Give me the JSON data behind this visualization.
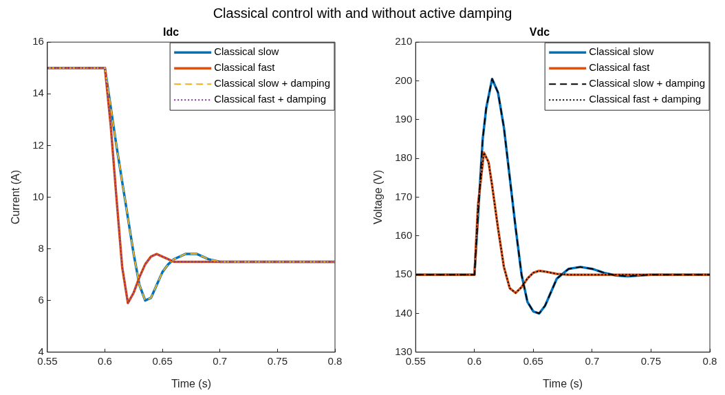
{
  "chart_data": [
    {
      "type": "line",
      "title": "Idc",
      "xlabel": "Time (s)",
      "ylabel": "Current (A)",
      "annotations": [
        "Classical control with and without active damping"
      ],
      "xlim": [
        0.55,
        0.8
      ],
      "xticks": [
        0.55,
        0.6,
        0.65,
        0.7,
        0.75,
        0.8
      ],
      "ylim": [
        4,
        16
      ],
      "yticks": [
        4,
        6,
        8,
        10,
        12,
        14,
        16
      ],
      "grid": false,
      "legend": "top right",
      "marker": "none",
      "series": [
        {
          "name": "Classical slow",
          "color": "#0072bd",
          "line_style": "solid",
          "x": [
            0.55,
            0.6,
            0.605,
            0.61,
            0.615,
            0.62,
            0.625,
            0.63,
            0.635,
            0.64,
            0.645,
            0.65,
            0.655,
            0.66,
            0.67,
            0.68,
            0.69,
            0.7,
            0.8
          ],
          "values": [
            15,
            15,
            13.5,
            12,
            10.6,
            9.2,
            7.8,
            6.6,
            6,
            6.1,
            6.6,
            7.1,
            7.4,
            7.6,
            7.8,
            7.8,
            7.6,
            7.5,
            7.5
          ]
        },
        {
          "name": "Classical fast",
          "color": "#d95319",
          "line_style": "solid",
          "x": [
            0.55,
            0.6,
            0.605,
            0.61,
            0.615,
            0.62,
            0.625,
            0.63,
            0.635,
            0.64,
            0.645,
            0.65,
            0.66,
            0.8
          ],
          "values": [
            15,
            15,
            12.8,
            10,
            7.3,
            5.9,
            6.3,
            6.9,
            7.4,
            7.7,
            7.8,
            7.7,
            7.5,
            7.5
          ]
        },
        {
          "name": "Classical slow + damping",
          "color": "#edb120",
          "line_style": "dashed",
          "x": [
            0.55,
            0.6,
            0.605,
            0.61,
            0.615,
            0.62,
            0.625,
            0.63,
            0.635,
            0.64,
            0.645,
            0.65,
            0.655,
            0.66,
            0.67,
            0.68,
            0.69,
            0.7,
            0.8
          ],
          "values": [
            15,
            15,
            13.5,
            12,
            10.6,
            9.2,
            7.8,
            6.6,
            6,
            6.1,
            6.6,
            7.1,
            7.4,
            7.6,
            7.8,
            7.8,
            7.6,
            7.5,
            7.5
          ]
        },
        {
          "name": "Classical fast + damping",
          "color": "#7e2f8e",
          "line_style": "dotted",
          "x": [
            0.55,
            0.6,
            0.605,
            0.61,
            0.615,
            0.62,
            0.625,
            0.63,
            0.635,
            0.64,
            0.645,
            0.65,
            0.66,
            0.8
          ],
          "values": [
            15,
            15,
            12.8,
            10,
            7.3,
            5.9,
            6.3,
            6.9,
            7.4,
            7.7,
            7.8,
            7.7,
            7.5,
            7.5
          ]
        }
      ]
    },
    {
      "type": "line",
      "title": "Vdc",
      "xlabel": "Time (s)",
      "ylabel": "Voltage (V)",
      "xlim": [
        0.55,
        0.8
      ],
      "xticks": [
        0.55,
        0.6,
        0.65,
        0.7,
        0.75,
        0.8
      ],
      "ylim": [
        130,
        210
      ],
      "yticks": [
        130,
        140,
        150,
        160,
        170,
        180,
        190,
        200,
        210
      ],
      "grid": false,
      "legend": "top right",
      "marker": "none",
      "series": [
        {
          "name": "Classical slow",
          "color": "#0072bd",
          "line_style": "solid",
          "x": [
            0.55,
            0.6,
            0.603,
            0.607,
            0.61,
            0.615,
            0.62,
            0.625,
            0.63,
            0.635,
            0.64,
            0.645,
            0.65,
            0.655,
            0.66,
            0.665,
            0.67,
            0.68,
            0.69,
            0.7,
            0.71,
            0.72,
            0.73,
            0.75,
            0.8
          ],
          "values": [
            150,
            150,
            165,
            185,
            193,
            200.5,
            197,
            188,
            175,
            162,
            150,
            143,
            140.5,
            140,
            142,
            145.5,
            149,
            151.5,
            152,
            151.5,
            150.5,
            149.8,
            149.6,
            150,
            150
          ]
        },
        {
          "name": "Classical fast",
          "color": "#d95319",
          "line_style": "solid",
          "x": [
            0.55,
            0.6,
            0.603,
            0.608,
            0.612,
            0.615,
            0.62,
            0.625,
            0.63,
            0.635,
            0.64,
            0.645,
            0.65,
            0.655,
            0.66,
            0.67,
            0.68,
            0.8
          ],
          "values": [
            150,
            150,
            168,
            181.5,
            179,
            173,
            162,
            152,
            146.5,
            145.3,
            146.8,
            149,
            150.5,
            151,
            150.8,
            150.2,
            150,
            150
          ]
        },
        {
          "name": "Classical slow + damping",
          "color": "#000000",
          "line_style": "dashed",
          "x": [
            0.55,
            0.6,
            0.603,
            0.607,
            0.61,
            0.615,
            0.62,
            0.625,
            0.63,
            0.635,
            0.64,
            0.645,
            0.65,
            0.655,
            0.66,
            0.665,
            0.67,
            0.68,
            0.69,
            0.7,
            0.71,
            0.72,
            0.73,
            0.75,
            0.8
          ],
          "values": [
            150,
            150,
            165,
            185,
            193,
            200.5,
            197,
            188,
            175,
            162,
            150,
            143,
            140.5,
            140,
            142,
            145.5,
            149,
            151.5,
            152,
            151.5,
            150.5,
            149.8,
            149.6,
            150,
            150
          ]
        },
        {
          "name": "Classical fast + damping",
          "color": "#000000",
          "line_style": "dotted",
          "x": [
            0.55,
            0.6,
            0.603,
            0.608,
            0.612,
            0.615,
            0.62,
            0.625,
            0.63,
            0.635,
            0.64,
            0.645,
            0.65,
            0.655,
            0.66,
            0.67,
            0.68,
            0.8
          ],
          "values": [
            150,
            150,
            168,
            181.5,
            179,
            173,
            162,
            152,
            146.5,
            145.3,
            146.8,
            149,
            150.5,
            151,
            150.8,
            150.2,
            150,
            150
          ]
        }
      ]
    }
  ]
}
